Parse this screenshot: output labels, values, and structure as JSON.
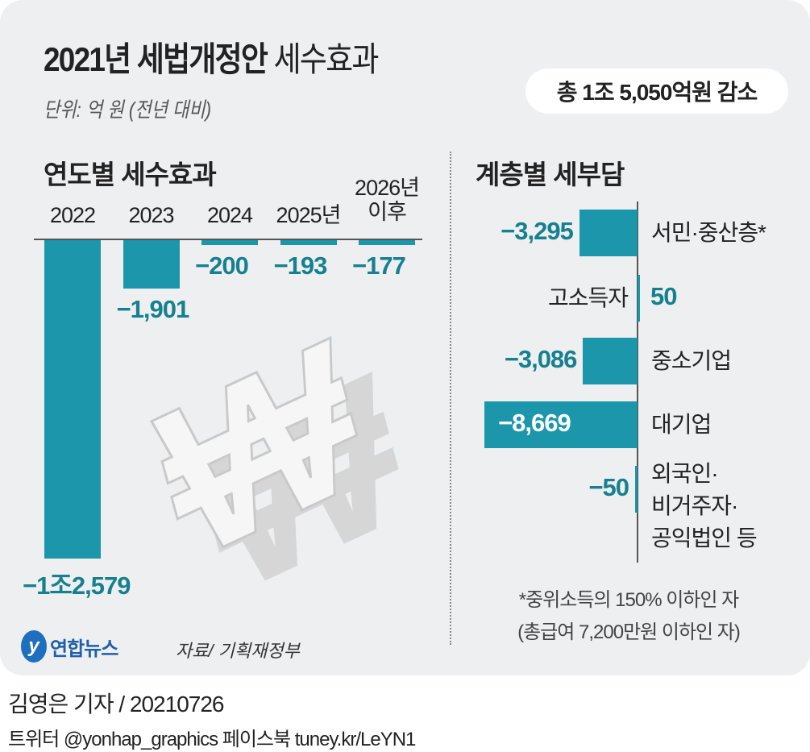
{
  "header": {
    "title_bold": "2021년 세법개정안",
    "title_light": "세수효과",
    "unit": "단위: 억 원 (전년 대비)",
    "total": "총 1조 5,050억원 감소"
  },
  "colors": {
    "bar": "#1b96ab",
    "value_text": "#17808f",
    "background": "#eeeff1"
  },
  "chart_data": [
    {
      "type": "bar",
      "title": "연도별 세수효과",
      "categories": [
        "2022",
        "2023",
        "2024",
        "2025년",
        "2026년 이후"
      ],
      "values": [
        -12579,
        -1901,
        -200,
        -193,
        -177
      ],
      "value_labels": [
        "−1조2,579",
        "−1,901",
        "−200",
        "−193",
        "−177"
      ],
      "orientation": "vertical"
    },
    {
      "type": "bar",
      "title": "계층별 세부담",
      "categories": [
        "서민·중산층*",
        "고소득자",
        "중소기업",
        "대기업",
        "외국인·비거주자·공익법인 등"
      ],
      "values": [
        -3295,
        50,
        -3086,
        -8669,
        -50
      ],
      "value_labels": [
        "−3,295",
        "50",
        "−3,086",
        "−8,669",
        "−50"
      ],
      "orientation": "horizontal"
    }
  ],
  "decoration": {
    "icon": "won-sign-icon"
  },
  "footnote": {
    "line1": "*중위소득의 150% 이하인 자",
    "line2": "(총급여 7,200만원 이하인 자)"
  },
  "logo": {
    "text": "연합뉴스"
  },
  "source": "자료/ 기획재정부",
  "byline": "김영은 기자 / 20210726",
  "social": "트위터 @yonhap_graphics  페이스북 tuney.kr/LeYN1"
}
